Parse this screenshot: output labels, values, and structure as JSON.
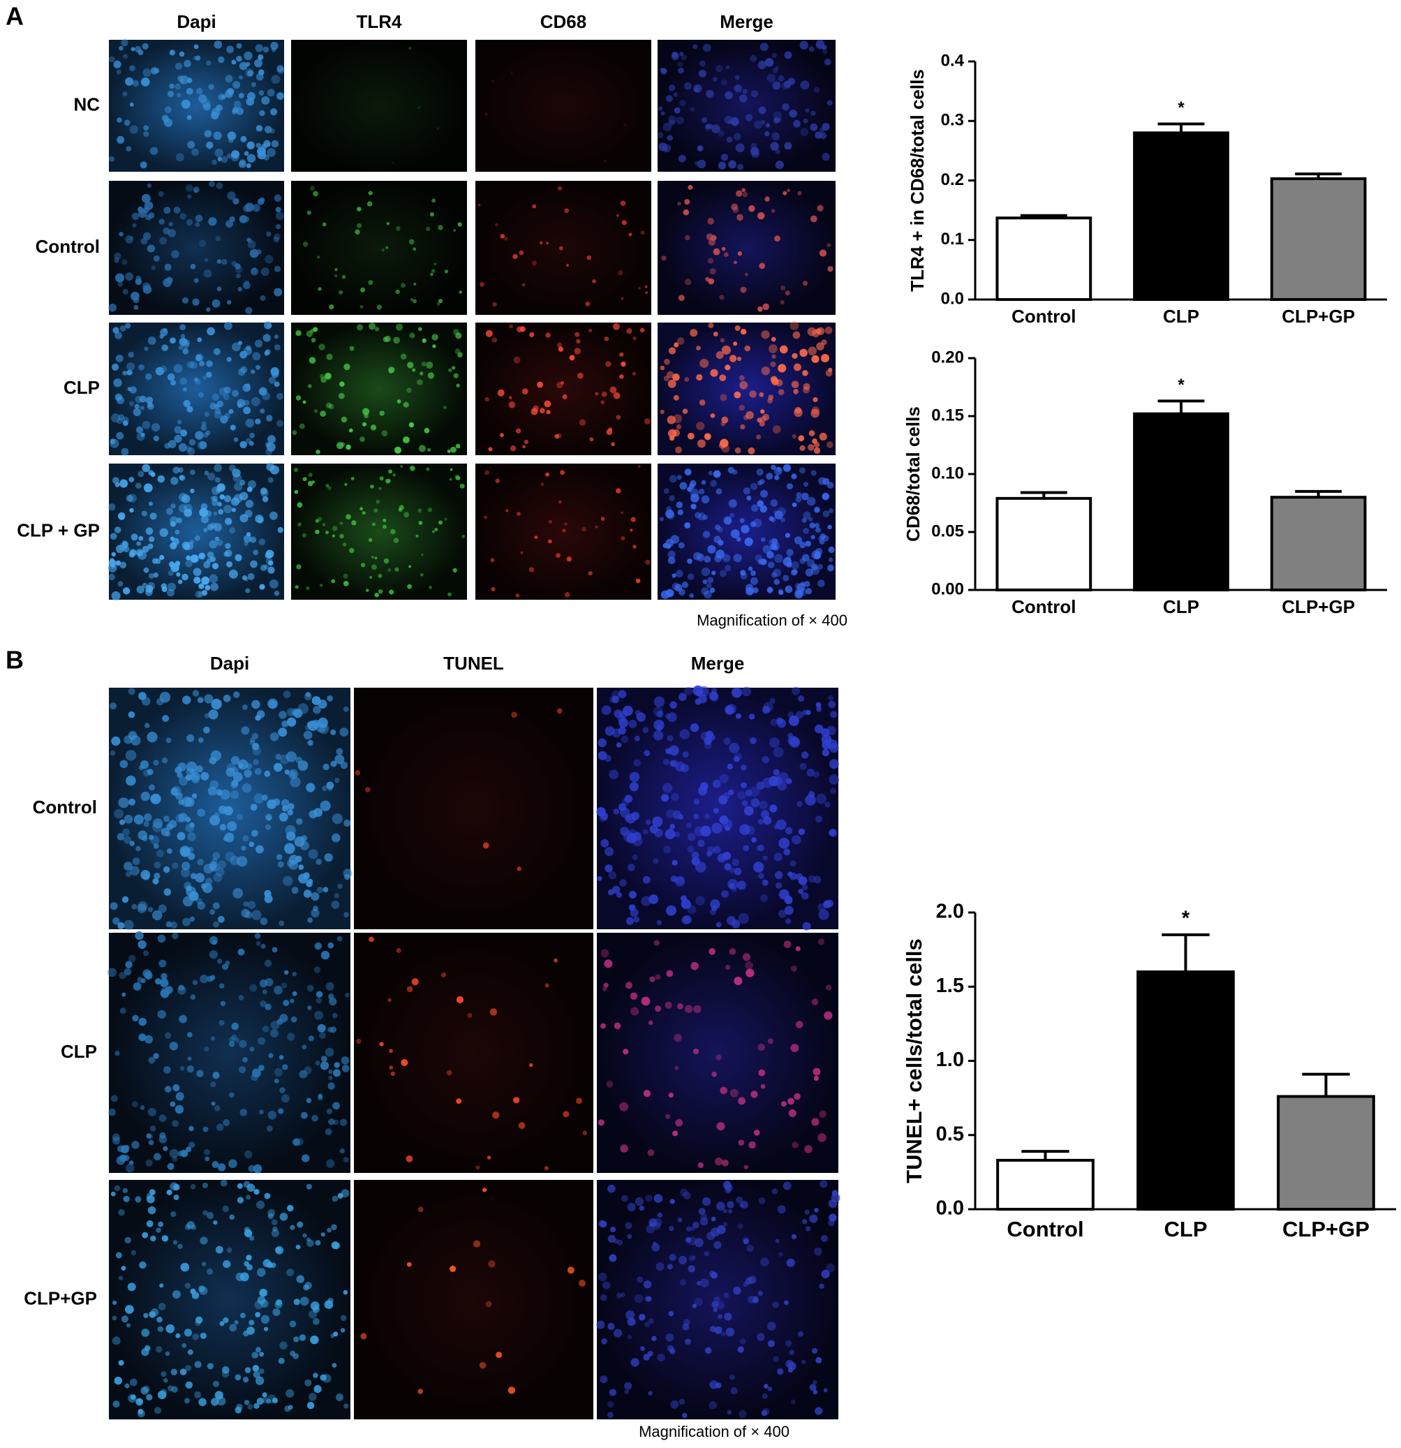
{
  "panel_a": {
    "label": "A",
    "columns": [
      "Dapi",
      "TLR4",
      "CD68",
      "Merge"
    ],
    "rows": [
      "NC",
      "Control",
      "CLP",
      "CLP + GP"
    ],
    "magnification": "Magnification of × 400"
  },
  "panel_b": {
    "label": "B",
    "columns": [
      "Dapi",
      "TUNEL",
      "Merge"
    ],
    "rows": [
      "Control",
      "CLP",
      "CLP+GP"
    ],
    "magnification": "Magnification of × 400"
  },
  "chart_data": [
    {
      "type": "bar",
      "y_label": "TLR4 + in CD68/total cells",
      "categories": [
        "Control",
        "CLP",
        "CLP+GP"
      ],
      "values": [
        0.137,
        0.28,
        0.203
      ],
      "errors": [
        0.004,
        0.015,
        0.008
      ],
      "colors": [
        "#ffffff",
        "#000000",
        "#808080"
      ],
      "edge_color": "#000000",
      "ylim": [
        0,
        0.4
      ],
      "yticks": [
        {
          "value": 0,
          "label": "0.0"
        },
        0.1,
        0.2,
        0.3,
        0.4
      ],
      "annotation": {
        "text": "*",
        "category": "CLP"
      }
    },
    {
      "type": "bar",
      "y_label": "CD68/total cells",
      "categories": [
        "Control",
        "CLP",
        "CLP+GP"
      ],
      "values": [
        0.079,
        0.152,
        0.08
      ],
      "errors": [
        0.005,
        0.011,
        0.005
      ],
      "colors": [
        "#ffffff",
        "#000000",
        "#808080"
      ],
      "edge_color": "#000000",
      "ylim": [
        0,
        0.2
      ],
      "yticks": [
        {
          "value": 0,
          "label": "0.00"
        },
        0.05,
        {
          "value": 0.1,
          "label": "0.10"
        },
        0.15,
        {
          "value": 0.2,
          "label": "0.20"
        }
      ],
      "annotation": {
        "text": "*",
        "category": "CLP"
      }
    },
    {
      "type": "bar",
      "y_label": "TUNEL+ cells/total cells",
      "categories": [
        "Control",
        "CLP",
        "CLP+GP"
      ],
      "values": [
        0.33,
        1.6,
        0.76
      ],
      "errors": [
        0.06,
        0.25,
        0.15
      ],
      "colors": [
        "#ffffff",
        "#000000",
        "#808080"
      ],
      "edge_color": "#000000",
      "ylim": [
        0,
        2
      ],
      "yticks": [
        {
          "value": 0,
          "label": "0.0"
        },
        0.5,
        {
          "value": 1,
          "label": "1.0"
        },
        1.5,
        {
          "value": 2,
          "label": "2.0"
        }
      ],
      "annotation": {
        "text": "*",
        "category": "CLP"
      }
    }
  ]
}
